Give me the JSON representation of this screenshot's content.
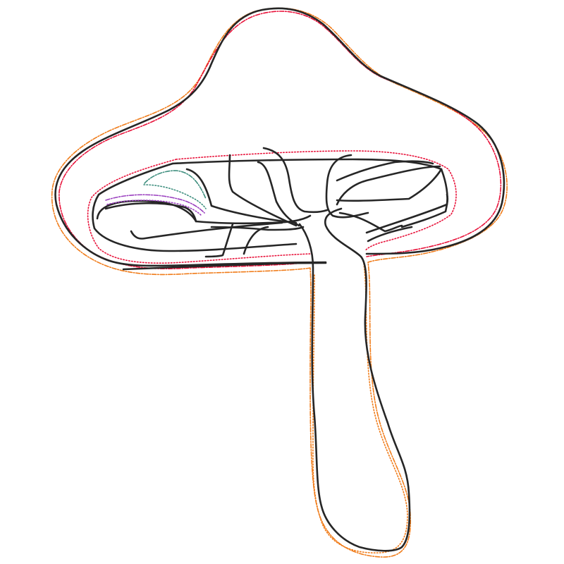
{
  "figure": {
    "subject": "mushroom-line-drawing",
    "colors": {
      "background": "#ffffff",
      "ink": "#262626",
      "outer_trace": "#f07c1a",
      "inner_trace": "#e8123a",
      "gill_trace_teal": "#3f8f7f",
      "gill_trace_purple": "#9a3fbf"
    }
  }
}
